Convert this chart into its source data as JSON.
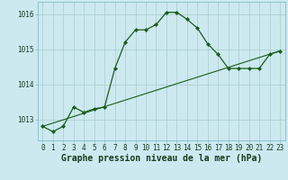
{
  "hours": [
    0,
    1,
    2,
    3,
    4,
    5,
    6,
    7,
    8,
    9,
    10,
    11,
    12,
    13,
    14,
    15,
    16,
    17,
    18,
    19,
    20,
    21,
    22,
    23
  ],
  "pressure": [
    1012.8,
    1012.65,
    1012.8,
    1013.35,
    1013.2,
    1013.3,
    1013.35,
    1014.45,
    1015.2,
    1015.55,
    1015.55,
    1015.7,
    1016.05,
    1016.05,
    1015.85,
    1015.6,
    1015.15,
    1014.85,
    1014.45,
    1014.45,
    1014.45,
    1014.45,
    1014.85,
    1014.95
  ],
  "trend_y0": 1012.8,
  "trend_y1": 1014.95,
  "background_color": "#cce9f0",
  "grid_color": "#aacccc",
  "line_color": "#1a5c1a",
  "marker_color": "#1a5c1a",
  "xlabel": "Graphe pression niveau de la mer (hPa)",
  "ylabel_ticks": [
    1013,
    1014,
    1015,
    1016
  ],
  "ylim": [
    1012.4,
    1016.35
  ],
  "xlim": [
    -0.5,
    23.5
  ],
  "tick_fontsize": 5.5,
  "label_fontsize": 7.0
}
